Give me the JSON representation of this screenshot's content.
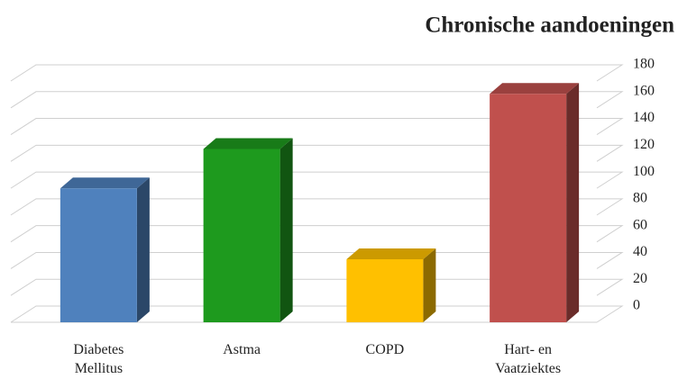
{
  "chart_data": {
    "type": "bar3d",
    "title": "Chronische aandoeningen",
    "categories": [
      "Diabetes Mellitus",
      "Astma",
      "COPD",
      "Hart- en Vaatziektes"
    ],
    "values": [
      85,
      110,
      40,
      145
    ],
    "colors": [
      "#4f81bd",
      "#1e9a1e",
      "#ffc000",
      "#c0504d"
    ],
    "ylim": [
      0,
      180
    ],
    "yticks": [
      0,
      20,
      40,
      60,
      80,
      100,
      120,
      140,
      160,
      180
    ],
    "grid": true,
    "y_axis_side": "right"
  }
}
